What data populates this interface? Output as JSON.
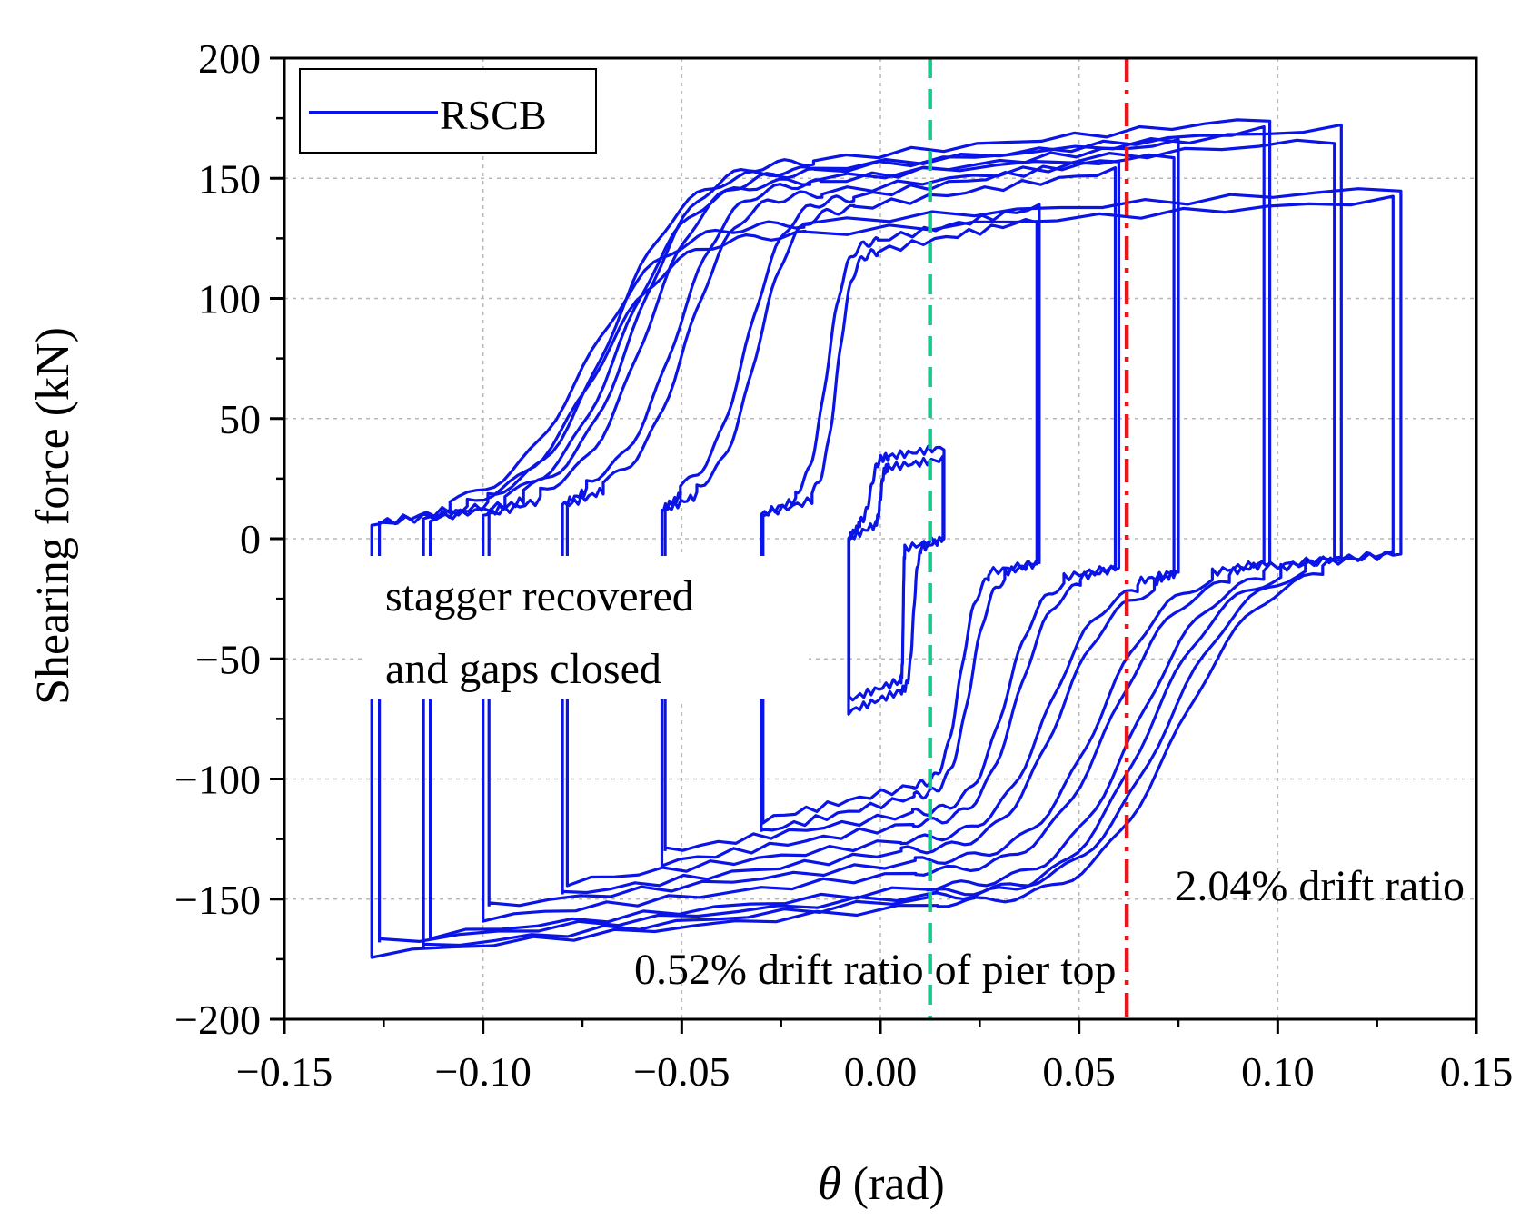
{
  "chart_data": {
    "type": "line",
    "title": "",
    "xlabel_symbol": "θ",
    "xlabel_unit": " (rad)",
    "ylabel": "Shearing force (kN)",
    "xlim": [
      -0.15,
      0.15
    ],
    "ylim": [
      -200,
      200
    ],
    "x_ticks": [
      -0.15,
      -0.1,
      -0.05,
      0.0,
      0.05,
      0.1,
      0.15
    ],
    "x_tick_labels": [
      "−0.15",
      "−0.10",
      "−0.05",
      "0.00",
      "0.05",
      "0.10",
      "0.15"
    ],
    "y_ticks": [
      -200,
      -150,
      -100,
      -50,
      0,
      50,
      100,
      150,
      200
    ],
    "y_tick_labels": [
      "−200",
      "−150",
      "−100",
      "−50",
      "0",
      "50",
      "100",
      "150",
      "200"
    ],
    "grid": true,
    "legend": {
      "position": "top-left",
      "entries": [
        "RSCB"
      ]
    },
    "colors": {
      "series": "#0a14e6",
      "green_line": "#19c98a",
      "red_line": "#e6171a"
    },
    "vlines": [
      {
        "x": 0.0125,
        "style": "dashed",
        "color": "green",
        "label": "0.52% drift ratio of pier top"
      },
      {
        "x": 0.062,
        "style": "dashdot",
        "color": "red",
        "label": "2.04% drift ratio"
      }
    ],
    "annotation": {
      "line1": "stagger recovered",
      "line2": "and gaps closed"
    },
    "series": [
      {
        "name": "RSCB",
        "loops": [
          {
            "xmin": -0.008,
            "xmax": 0.016,
            "top": 38,
            "top_end": 28,
            "plateau": -2,
            "bottom": -72,
            "knee": -0.003,
            "knee_neg": 0.008
          },
          {
            "xmin": -0.03,
            "xmax": 0.04,
            "top": 138,
            "top_end": 126,
            "plateau": 8,
            "bottom": -122,
            "knee": -0.015,
            "knee_neg": 0.025
          },
          {
            "xmin": -0.055,
            "xmax": 0.06,
            "top": 158,
            "top_end": 150,
            "plateau": 10,
            "bottom": -135,
            "knee": -0.04,
            "knee_neg": 0.04
          },
          {
            "xmin": -0.08,
            "xmax": 0.075,
            "top": 165,
            "top_end": 155,
            "plateau": 12,
            "bottom": -148,
            "knee": -0.06,
            "knee_neg": 0.055
          },
          {
            "xmin": -0.1,
            "xmax": 0.098,
            "top": 175,
            "top_end": 160,
            "plateau": 8,
            "bottom": -158,
            "knee": -0.072,
            "knee_neg": 0.07
          },
          {
            "xmin": -0.115,
            "xmax": 0.116,
            "top": 171,
            "top_end": 163,
            "plateau": 6,
            "bottom": -170,
            "knee": -0.078,
            "knee_neg": 0.08
          },
          {
            "xmin": -0.128,
            "xmax": 0.131,
            "top": 146,
            "top_end": 138,
            "plateau": 4,
            "bottom": -173,
            "knee": -0.085,
            "knee_neg": 0.088
          }
        ]
      }
    ]
  }
}
